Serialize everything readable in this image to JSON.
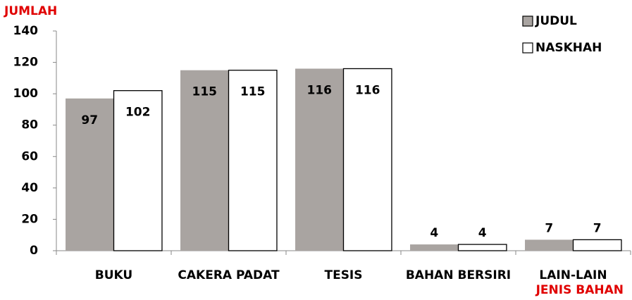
{
  "chart_data": {
    "type": "bar",
    "y_label": "JUMLAH",
    "x_label": "JENIS BAHAN",
    "categories": [
      "BUKU",
      "CAKERA PADAT",
      "TESIS",
      "BAHAN BERSIRI",
      "LAIN-LAIN"
    ],
    "series": [
      {
        "name": "JUDUL",
        "color": "#a9a4a1",
        "values": [
          97,
          115,
          116,
          4,
          7
        ]
      },
      {
        "name": "NASKHAH",
        "color": "#ffffff",
        "values": [
          102,
          115,
          116,
          4,
          7
        ]
      }
    ],
    "ylim": [
      0,
      140
    ],
    "yticks": [
      0,
      20,
      40,
      60,
      80,
      100,
      120,
      140
    ],
    "grid": false,
    "legend": "top-right"
  }
}
